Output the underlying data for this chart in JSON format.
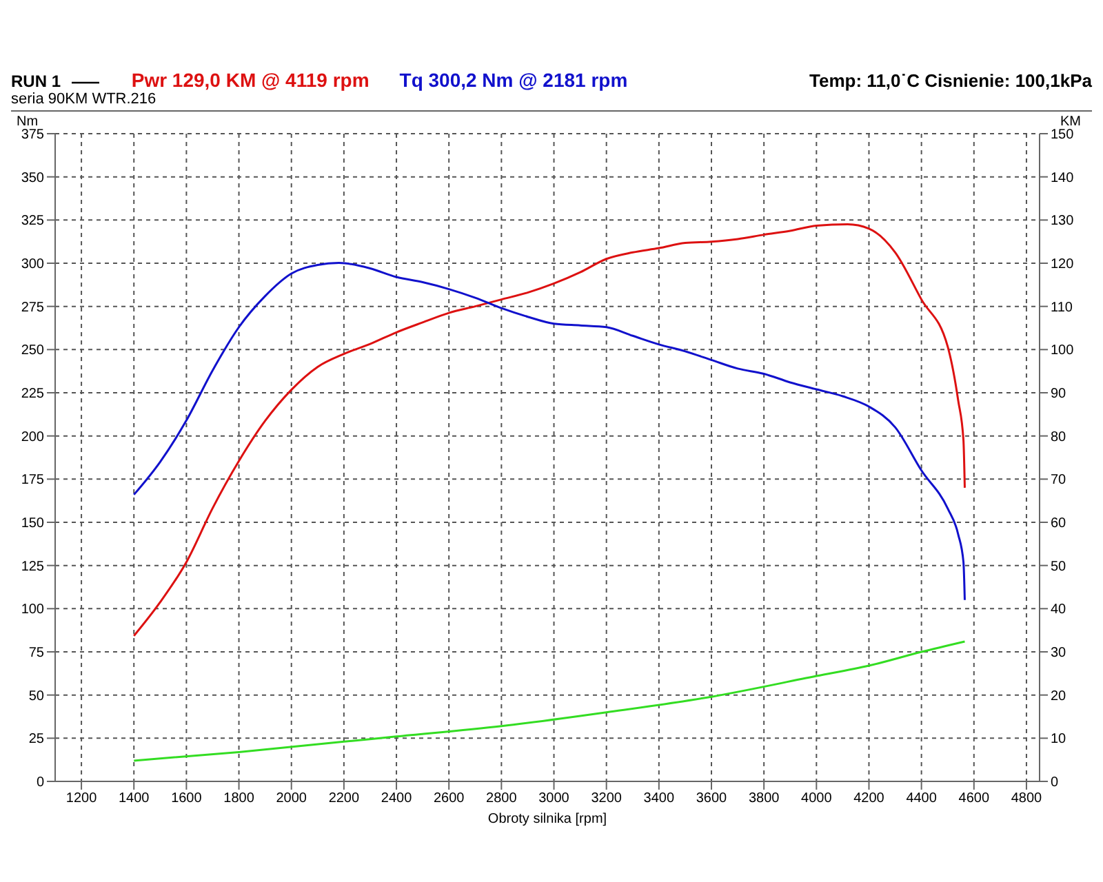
{
  "chart_data": {
    "type": "line",
    "subtitle": "seria 90KM WTR.216",
    "legend_title": "RUN 1",
    "legend": "top left",
    "annotations": [
      "Temp: 11,0˙C   Cisnienie: 100,1kPa"
    ],
    "xlabel": "Obroty silnika [rpm]",
    "ylabel": "Nm",
    "y2label": "KM",
    "grid": true,
    "marker": "none",
    "xlim": [
      1100,
      4850
    ],
    "xticks": [
      1200,
      1400,
      1600,
      1800,
      2000,
      2200,
      2400,
      2600,
      2800,
      3000,
      3200,
      3400,
      3600,
      3800,
      4000,
      4200,
      4400,
      4600,
      4800
    ],
    "ylim": [
      0,
      375
    ],
    "yticks": [
      0,
      25,
      50,
      75,
      100,
      125,
      150,
      175,
      200,
      225,
      250,
      275,
      300,
      325,
      350,
      375
    ],
    "y2lim": [
      0,
      150
    ],
    "y2ticks": [
      0,
      10,
      20,
      30,
      40,
      50,
      60,
      70,
      80,
      90,
      100,
      110,
      120,
      130,
      140,
      150
    ],
    "series": [
      {
        "name": "Pwr  129,0 KM @ 4119 rpm",
        "color": "#dd1111",
        "axis": "y2",
        "x": [
          1400,
          1500,
          1600,
          1700,
          1800,
          1900,
          2000,
          2100,
          2200,
          2300,
          2400,
          2500,
          2600,
          2700,
          2800,
          2900,
          3000,
          3100,
          3200,
          3300,
          3400,
          3500,
          3600,
          3700,
          3800,
          3900,
          4000,
          4119,
          4200,
          4300,
          4400,
          4500,
          4540,
          4560,
          4565
        ],
        "values": [
          33.7,
          41.5,
          50.8,
          63.3,
          74.2,
          83.5,
          90.7,
          96,
          99,
          101.3,
          104,
          106.3,
          108.5,
          110,
          111.6,
          113.2,
          115.3,
          117.9,
          121,
          122.5,
          123.5,
          124.7,
          125,
          125.6,
          126.6,
          127.5,
          128.7,
          129,
          128,
          122.5,
          111.6,
          100.7,
          88.2,
          79,
          68
        ]
      },
      {
        "name": "Tq 300,2 Nm @ 2181 rpm",
        "color": "#1111cc",
        "x": [
          1400,
          1500,
          1600,
          1700,
          1800,
          1900,
          2000,
          2100,
          2181,
          2300,
          2400,
          2500,
          2600,
          2700,
          2800,
          2900,
          3000,
          3100,
          3200,
          3300,
          3400,
          3500,
          3600,
          3700,
          3800,
          3900,
          4000,
          4100,
          4200,
          4300,
          4400,
          4500,
          4540,
          4560,
          4565
        ],
        "values": [
          166,
          185,
          209,
          238,
          263,
          281,
          294,
          299,
          300.2,
          297,
          292,
          289,
          285,
          280,
          274,
          269,
          265,
          264,
          263,
          258,
          253,
          249,
          244,
          239,
          236,
          231,
          227,
          223,
          217,
          205,
          180,
          158,
          143,
          127,
          105
        ]
      },
      {
        "color": "#33dd22",
        "axis": "y2",
        "x": [
          1400,
          1800,
          2200,
          2400,
          2800,
          3200,
          3600,
          4000,
          4200,
          4400,
          4565
        ],
        "values": [
          4.8,
          6.8,
          9.2,
          10.4,
          12.8,
          16,
          19.6,
          24.4,
          26.8,
          30,
          32.4
        ]
      }
    ]
  }
}
